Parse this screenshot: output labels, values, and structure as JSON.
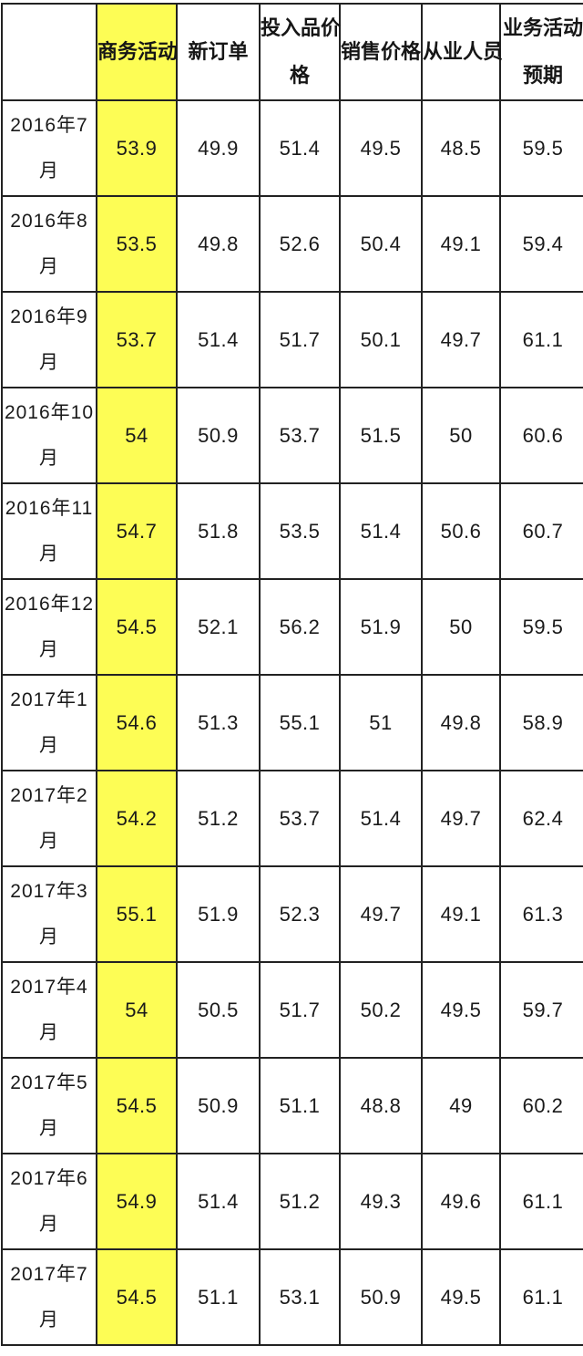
{
  "colors": {
    "highlight_yellow": "#fdfd55",
    "border": "#222222",
    "text": "#1a1a1a"
  },
  "chart_data": {
    "type": "table",
    "title": "",
    "highlighted_column": "商务活动",
    "columns": [
      {
        "label": "",
        "lines": [],
        "highlight": false
      },
      {
        "label": "商务活动",
        "lines": [
          "商务活动"
        ],
        "highlight": true
      },
      {
        "label": "新订单",
        "lines": [
          "新订单"
        ],
        "highlight": false
      },
      {
        "label": "投入品价格",
        "lines": [
          "投入品价",
          "格"
        ],
        "highlight": false
      },
      {
        "label": "销售价格",
        "lines": [
          "销售价格"
        ],
        "highlight": false
      },
      {
        "label": "从业人员",
        "lines": [
          "从业人员"
        ],
        "highlight": false
      },
      {
        "label": "业务活动预期",
        "lines": [
          "业务活动",
          "预期"
        ],
        "highlight": false
      }
    ],
    "rows": [
      {
        "month": "2016年7月",
        "month_lines": [
          "2016年7",
          "月"
        ],
        "values": [
          "53.9",
          "49.9",
          "51.4",
          "49.5",
          "48.5",
          "59.5"
        ]
      },
      {
        "month": "2016年8月",
        "month_lines": [
          "2016年8",
          "月"
        ],
        "values": [
          "53.5",
          "49.8",
          "52.6",
          "50.4",
          "49.1",
          "59.4"
        ]
      },
      {
        "month": "2016年9月",
        "month_lines": [
          "2016年9",
          "月"
        ],
        "values": [
          "53.7",
          "51.4",
          "51.7",
          "50.1",
          "49.7",
          "61.1"
        ]
      },
      {
        "month": "2016年10月",
        "month_lines": [
          "2016年10",
          "月"
        ],
        "values": [
          "54",
          "50.9",
          "53.7",
          "51.5",
          "50",
          "60.6"
        ]
      },
      {
        "month": "2016年11月",
        "month_lines": [
          "2016年11",
          "月"
        ],
        "values": [
          "54.7",
          "51.8",
          "53.5",
          "51.4",
          "50.6",
          "60.7"
        ]
      },
      {
        "month": "2016年12月",
        "month_lines": [
          "2016年12",
          "月"
        ],
        "values": [
          "54.5",
          "52.1",
          "56.2",
          "51.9",
          "50",
          "59.5"
        ]
      },
      {
        "month": "2017年1月",
        "month_lines": [
          "2017年1",
          "月"
        ],
        "values": [
          "54.6",
          "51.3",
          "55.1",
          "51",
          "49.8",
          "58.9"
        ]
      },
      {
        "month": "2017年2月",
        "month_lines": [
          "2017年2",
          "月"
        ],
        "values": [
          "54.2",
          "51.2",
          "53.7",
          "51.4",
          "49.7",
          "62.4"
        ]
      },
      {
        "month": "2017年3月",
        "month_lines": [
          "2017年3",
          "月"
        ],
        "values": [
          "55.1",
          "51.9",
          "52.3",
          "49.7",
          "49.1",
          "61.3"
        ]
      },
      {
        "month": "2017年4月",
        "month_lines": [
          "2017年4",
          "月"
        ],
        "values": [
          "54",
          "50.5",
          "51.7",
          "50.2",
          "49.5",
          "59.7"
        ]
      },
      {
        "month": "2017年5月",
        "month_lines": [
          "2017年5",
          "月"
        ],
        "values": [
          "54.5",
          "50.9",
          "51.1",
          "48.8",
          "49",
          "60.2"
        ]
      },
      {
        "month": "2017年6月",
        "month_lines": [
          "2017年6",
          "月"
        ],
        "values": [
          "54.9",
          "51.4",
          "51.2",
          "49.3",
          "49.6",
          "61.1"
        ]
      },
      {
        "month": "2017年7月",
        "month_lines": [
          "2017年7",
          "月"
        ],
        "values": [
          "54.5",
          "51.1",
          "53.1",
          "50.9",
          "49.5",
          "61.1"
        ]
      }
    ]
  }
}
